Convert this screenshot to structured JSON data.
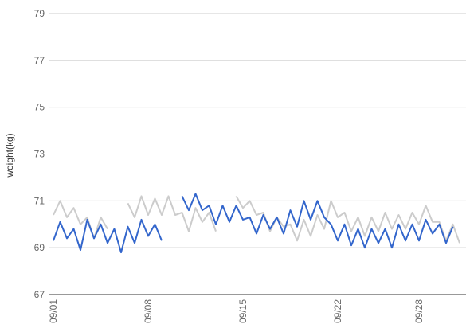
{
  "chart_data": {
    "type": "line",
    "y_label": "weight(kg)",
    "categories": [
      "09/01",
      null,
      null,
      null,
      null,
      null,
      null,
      null,
      null,
      null,
      null,
      null,
      null,
      null,
      "09/08",
      null,
      null,
      null,
      null,
      null,
      null,
      null,
      null,
      null,
      null,
      null,
      null,
      null,
      "09/15",
      null,
      null,
      null,
      null,
      null,
      null,
      null,
      null,
      null,
      null,
      null,
      null,
      null,
      "09/22",
      null,
      null,
      null,
      null,
      null,
      null,
      null,
      null,
      null,
      null,
      null,
      "09/28",
      null,
      null,
      null,
      null,
      null,
      null
    ],
    "series": [
      {
        "color": "#cccccc",
        "values": [
          70.4,
          71.0,
          70.3,
          70.7,
          70.0,
          70.3,
          69.4,
          70.3,
          69.8,
          null,
          null,
          70.9,
          70.3,
          71.2,
          70.4,
          71.1,
          70.4,
          71.2,
          70.4,
          70.5,
          69.7,
          70.7,
          70.1,
          70.5,
          69.7,
          null,
          null,
          71.2,
          70.7,
          71.0,
          70.4,
          70.5,
          69.7,
          70.3,
          69.9,
          70.0,
          69.3,
          70.2,
          69.5,
          70.4,
          69.8,
          71.0,
          70.3,
          70.5,
          69.7,
          70.3,
          69.5,
          70.3,
          69.7,
          70.5,
          69.8,
          70.4,
          69.8,
          70.5,
          70.0,
          70.8,
          70.1,
          70.1,
          69.3,
          70.0,
          69.2
        ]
      },
      {
        "color": "#3366cc",
        "values": [
          69.3,
          70.1,
          69.4,
          69.8,
          68.9,
          70.2,
          69.4,
          70.0,
          69.2,
          69.8,
          68.8,
          69.9,
          69.2,
          70.2,
          69.5,
          70.0,
          69.3,
          null,
          null,
          71.2,
          70.6,
          71.3,
          70.6,
          70.8,
          70.0,
          70.8,
          70.1,
          70.8,
          70.2,
          70.3,
          69.6,
          70.4,
          69.8,
          70.3,
          69.6,
          70.6,
          69.9,
          71.0,
          70.2,
          71.0,
          70.3,
          70.0,
          69.3,
          70.0,
          69.1,
          69.8,
          69.0,
          69.8,
          69.2,
          69.8,
          69.0,
          70.0,
          69.3,
          70.0,
          69.3,
          70.2,
          69.6,
          70.0,
          69.2,
          69.9,
          null
        ]
      }
    ],
    "ylim": [
      67,
      79
    ],
    "yticks": [
      67,
      69,
      71,
      73,
      75,
      77,
      79
    ],
    "grid": true
  }
}
